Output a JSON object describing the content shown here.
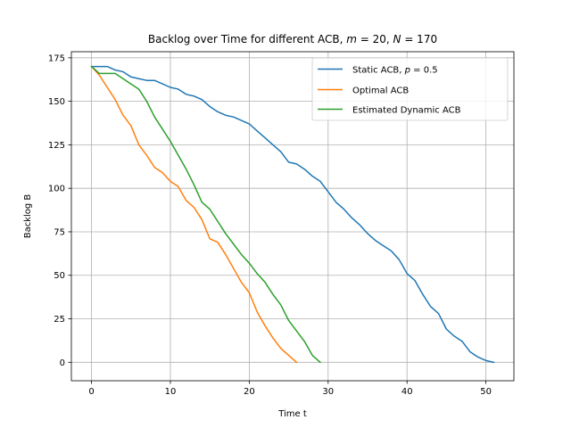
{
  "chart_data": {
    "type": "line",
    "title": "Backlog over Time for different ACB, m = 20, N = 170",
    "xlabel": "Time t",
    "ylabel": "Backlog B",
    "xlim": [
      -2.55,
      53.55
    ],
    "ylim": [
      -10.6,
      178.5
    ],
    "xticks": [
      0,
      10,
      20,
      30,
      40,
      50
    ],
    "yticks": [
      0,
      25,
      50,
      75,
      100,
      125,
      150,
      175
    ],
    "grid": true,
    "legend_position": "top-right",
    "series": [
      {
        "name": "Static ACB,  p = 0.5",
        "color": "#1f77b4",
        "x": [
          0,
          1,
          2,
          3,
          4,
          5,
          6,
          7,
          8,
          9,
          10,
          11,
          12,
          13,
          14,
          15,
          16,
          17,
          18,
          19,
          20,
          21,
          22,
          23,
          24,
          25,
          26,
          27,
          28,
          29,
          30,
          31,
          32,
          33,
          34,
          35,
          36,
          37,
          38,
          39,
          40,
          41,
          42,
          43,
          44,
          45,
          46,
          47,
          48,
          49,
          50,
          51
        ],
        "y": [
          170,
          170,
          170,
          168,
          167,
          164,
          163,
          162,
          162,
          160,
          158,
          157,
          154,
          153,
          151,
          147,
          144,
          142,
          141,
          139,
          137,
          133,
          129,
          125,
          121,
          115,
          114,
          111,
          107,
          104,
          98,
          92,
          88,
          83,
          79,
          74,
          70,
          67,
          64,
          59,
          51,
          47,
          39,
          32,
          28,
          19,
          15,
          12,
          6,
          3,
          1,
          0
        ]
      },
      {
        "name": "Optimal ACB",
        "color": "#ff7f0e",
        "x": [
          0,
          1,
          2,
          3,
          4,
          5,
          6,
          7,
          8,
          9,
          10,
          11,
          12,
          13,
          14,
          15,
          16,
          17,
          18,
          19,
          20,
          21,
          22,
          23,
          24,
          25,
          26
        ],
        "y": [
          170,
          165,
          158,
          151,
          142,
          136,
          125,
          119,
          112,
          109,
          104,
          101,
          93,
          89,
          82,
          71,
          69,
          62,
          54,
          46,
          40,
          29,
          21,
          14,
          8,
          4,
          0
        ]
      },
      {
        "name": "Estimated Dynamic ACB",
        "color": "#2ca02c",
        "x": [
          0,
          1,
          2,
          3,
          4,
          5,
          6,
          7,
          8,
          9,
          10,
          11,
          12,
          13,
          14,
          15,
          16,
          17,
          18,
          19,
          20,
          21,
          22,
          23,
          24,
          25,
          26,
          27,
          28,
          29
        ],
        "y": [
          170,
          166,
          166,
          166,
          163,
          160,
          157,
          150,
          141,
          134,
          127,
          119,
          111,
          102,
          92,
          88,
          81,
          74,
          68,
          62,
          57,
          51,
          46,
          39,
          33,
          24,
          18,
          12,
          4,
          0
        ]
      }
    ]
  }
}
